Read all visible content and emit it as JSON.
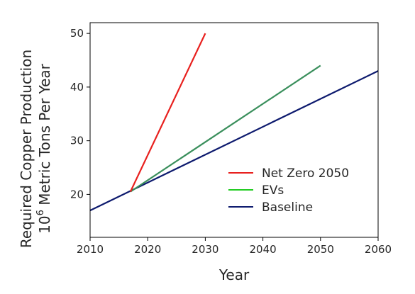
{
  "chart_data": {
    "type": "line",
    "xlabel": "Year",
    "ylabel_line1": "Required Copper Production",
    "ylabel_line2_base": "10",
    "ylabel_line2_exp": "6",
    "ylabel_line2_rest": " Metric Tons Per Year",
    "xlim": [
      2010,
      2060
    ],
    "ylim": [
      12,
      52
    ],
    "xticks": [
      2010,
      2020,
      2030,
      2040,
      2050,
      2060
    ],
    "yticks": [
      20,
      30,
      40,
      50
    ],
    "grid": false,
    "legend_position": "lower-right",
    "series": [
      {
        "name": "Net Zero 2050",
        "color": "#e8201e",
        "x": [
          2017,
          2030
        ],
        "y": [
          20.5,
          50
        ]
      },
      {
        "name": "EVs",
        "color": "#3a8f5c",
        "legend_color": "#22cc22",
        "x": [
          2017,
          2050
        ],
        "y": [
          20.5,
          44
        ]
      },
      {
        "name": "Baseline",
        "color": "#0d1a6e",
        "x": [
          2010,
          2060
        ],
        "y": [
          17,
          43
        ]
      }
    ]
  }
}
